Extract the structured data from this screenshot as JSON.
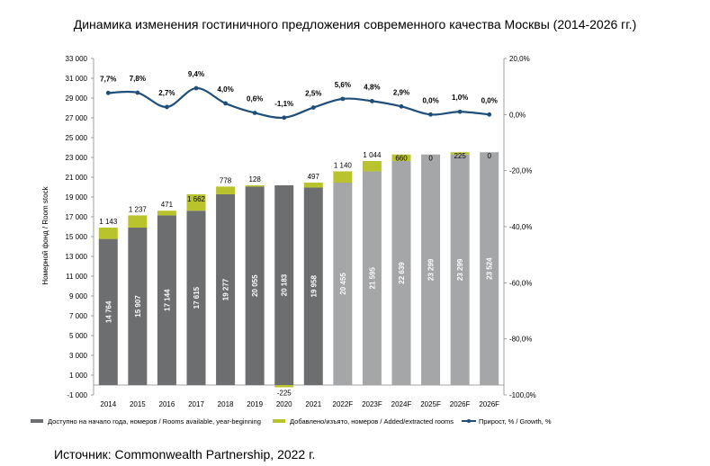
{
  "title": "Динамика изменения гостиничного предложения современного качества Москвы (2014-2026 гг.)",
  "source": "Источник: Commonwealth Partnership, 2022 г.",
  "chart_data": {
    "type": "bar",
    "categories": [
      "2014",
      "2015",
      "2016",
      "2017",
      "2018",
      "2019",
      "2020",
      "2021",
      "2022F",
      "2023F",
      "2024F",
      "2025F",
      "2026F",
      "2026F"
    ],
    "forecast_flags": [
      false,
      false,
      false,
      false,
      false,
      false,
      false,
      false,
      true,
      true,
      true,
      true,
      true,
      true
    ],
    "series": [
      {
        "name": "Доступно на начало года, номеров / Rooms available, year-beginning",
        "kind": "bar",
        "values": [
          14764,
          15907,
          17144,
          17615,
          19277,
          20055,
          20183,
          19958,
          20455,
          21595,
          22639,
          23299,
          23299,
          23524
        ],
        "labels": [
          "14 764",
          "15 907",
          "17 144",
          "17 615",
          "19 277",
          "20 055",
          "20 183",
          "19 958",
          "20 455",
          "21 595",
          "22 639",
          "23 299",
          "23 299",
          "23 524"
        ]
      },
      {
        "name": "Добавлено/изъято, номеров / Added/extracted rooms",
        "kind": "bar",
        "values": [
          1143,
          1237,
          471,
          1662,
          778,
          128,
          -225,
          497,
          1140,
          1044,
          660,
          0,
          225,
          0
        ],
        "labels": [
          "1 143",
          "1 237",
          "471",
          "1 662",
          "778",
          "128",
          "-225",
          "497",
          "1 140",
          "1 044",
          "660",
          "0",
          "225",
          "0"
        ]
      },
      {
        "name": "Прирост, % / Growth, %",
        "kind": "line",
        "axis": "right",
        "values": [
          7.7,
          7.8,
          2.7,
          9.4,
          4.0,
          0.6,
          -1.1,
          2.5,
          5.6,
          4.8,
          2.9,
          0.0,
          1.0,
          0.0
        ],
        "labels": [
          "7,7%",
          "7,8%",
          "2,7%",
          "9,4%",
          "4,0%",
          "0,6%",
          "-1,1%",
          "2,5%",
          "5,6%",
          "4,8%",
          "2,9%",
          "0,0%",
          "1,0%",
          "0,0%"
        ]
      }
    ],
    "ylabel": "Номерной фонд / Room stock",
    "ylim": [
      -1000,
      33000
    ],
    "yticks": [
      -1000,
      1000,
      3000,
      5000,
      7000,
      9000,
      11000,
      13000,
      15000,
      17000,
      19000,
      21000,
      23000,
      25000,
      27000,
      29000,
      31000,
      33000
    ],
    "ytick_labels": [
      "-1 000",
      "1 000",
      "3 000",
      "5 000",
      "7 000",
      "9 000",
      "11 000",
      "13 000",
      "15 000",
      "17 000",
      "19 000",
      "21 000",
      "23 000",
      "25 000",
      "27 000",
      "29 000",
      "31 000",
      "33 000"
    ],
    "y2lim": [
      -100,
      20
    ],
    "y2ticks": [
      -100,
      -80,
      -60,
      -40,
      -20,
      0,
      20
    ],
    "y2tick_labels": [
      "-100,0%",
      "-80,0%",
      "-60,0%",
      "-40,0%",
      "-20,0%",
      "0,0%",
      "20,0%"
    ],
    "legend_position": "bottom",
    "grid": false,
    "colors": {
      "actual": "#6d6e70",
      "forecast": "#a5a6a8",
      "added": "#b9c42c",
      "line": "#1f4e79"
    }
  }
}
